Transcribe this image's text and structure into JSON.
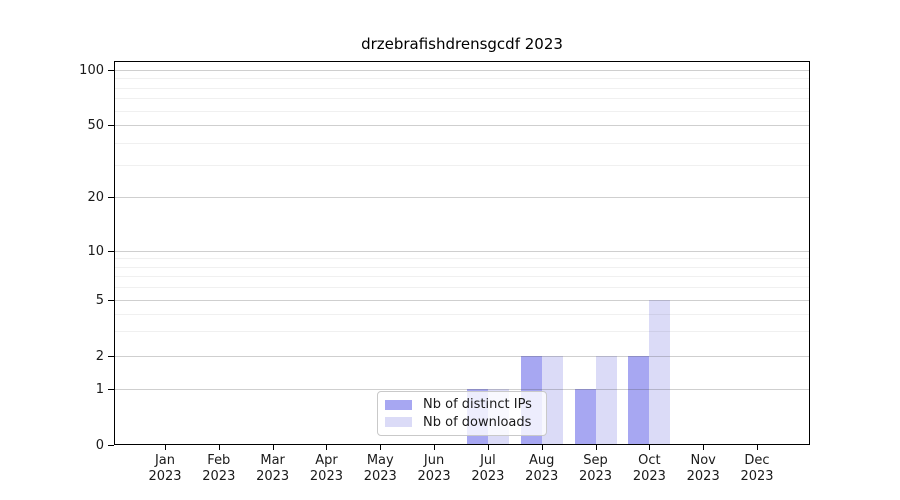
{
  "figure": {
    "background": "#ffffff",
    "text_color": "#1a1a1a"
  },
  "chart_data": {
    "type": "bar",
    "title": "drzebrafishdrensgcdf 2023",
    "xlabel": "",
    "ylabel": "",
    "categories": [
      "Jan 2023",
      "Feb 2023",
      "Mar 2023",
      "Apr 2023",
      "May 2023",
      "Jun 2023",
      "Jul 2023",
      "Aug 2023",
      "Sep 2023",
      "Oct 2023",
      "Nov 2023",
      "Dec 2023"
    ],
    "series": [
      {
        "name": "Nb of distinct IPs",
        "color": "#a7a7f2",
        "values": [
          0,
          0,
          0,
          0,
          0,
          0,
          1,
          2,
          1,
          2,
          0,
          0
        ]
      },
      {
        "name": "Nb of downloads",
        "color": "#dbdbf7",
        "values": [
          0,
          0,
          0,
          0,
          0,
          0,
          1,
          2,
          2,
          5,
          0,
          0
        ]
      }
    ],
    "y_axis": {
      "scale": "log-like",
      "range": [
        0,
        100
      ],
      "ticks": [
        0,
        1,
        2,
        5,
        10,
        20,
        50,
        100
      ]
    },
    "minor_gridlines": [
      3,
      4,
      6,
      7,
      8,
      9,
      30,
      40,
      60,
      70,
      80,
      90
    ],
    "grid": "horizontal major+minor",
    "legend_position": "bottom-center"
  }
}
